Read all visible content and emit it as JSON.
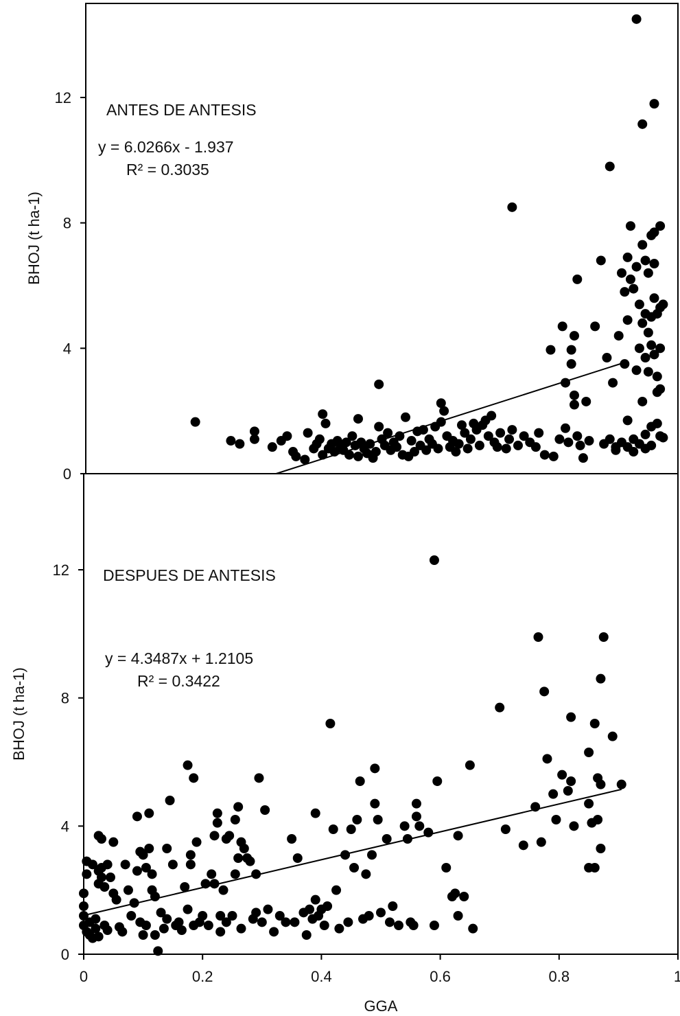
{
  "chart_data": [
    {
      "type": "scatter",
      "title": "ANTES DE ANTESIS",
      "equation": "y = 6.0266x - 1.937",
      "r2": "R² = 0.3035",
      "xlabel": "",
      "ylabel": "BHOJ (t ha-1)",
      "xlim": [
        0,
        1
      ],
      "ylim": [
        0,
        15
      ],
      "yticks": [
        "0",
        "4",
        "8",
        "12"
      ],
      "trendline": {
        "slope": 6.0266,
        "intercept": -1.937,
        "x_range": [
          0.3214,
          0.91
        ]
      },
      "points": [
        [
          0.185,
          1.65
        ],
        [
          0.245,
          1.05
        ],
        [
          0.26,
          0.95
        ],
        [
          0.285,
          1.35
        ],
        [
          0.285,
          1.1
        ],
        [
          0.315,
          0.85
        ],
        [
          0.33,
          1.05
        ],
        [
          0.34,
          1.2
        ],
        [
          0.35,
          0.7
        ],
        [
          0.355,
          0.55
        ],
        [
          0.37,
          0.45
        ],
        [
          0.375,
          1.3
        ],
        [
          0.385,
          0.8
        ],
        [
          0.39,
          0.95
        ],
        [
          0.395,
          1.1
        ],
        [
          0.4,
          1.9
        ],
        [
          0.4,
          0.6
        ],
        [
          0.405,
          1.6
        ],
        [
          0.41,
          0.8
        ],
        [
          0.415,
          0.95
        ],
        [
          0.42,
          0.7
        ],
        [
          0.425,
          1.05
        ],
        [
          0.43,
          0.85
        ],
        [
          0.435,
          0.75
        ],
        [
          0.44,
          1.0
        ],
        [
          0.445,
          0.6
        ],
        [
          0.45,
          1.2
        ],
        [
          0.455,
          0.9
        ],
        [
          0.46,
          1.75
        ],
        [
          0.46,
          0.55
        ],
        [
          0.465,
          1.0
        ],
        [
          0.47,
          0.8
        ],
        [
          0.475,
          0.65
        ],
        [
          0.48,
          0.95
        ],
        [
          0.485,
          0.5
        ],
        [
          0.49,
          0.7
        ],
        [
          0.495,
          2.85
        ],
        [
          0.495,
          1.5
        ],
        [
          0.5,
          1.1
        ],
        [
          0.505,
          0.9
        ],
        [
          0.51,
          1.3
        ],
        [
          0.515,
          0.75
        ],
        [
          0.52,
          1.0
        ],
        [
          0.525,
          0.85
        ],
        [
          0.53,
          1.2
        ],
        [
          0.535,
          0.6
        ],
        [
          0.54,
          1.8
        ],
        [
          0.545,
          0.55
        ],
        [
          0.55,
          1.05
        ],
        [
          0.555,
          0.7
        ],
        [
          0.56,
          1.35
        ],
        [
          0.565,
          0.9
        ],
        [
          0.57,
          1.4
        ],
        [
          0.575,
          0.75
        ],
        [
          0.58,
          1.1
        ],
        [
          0.585,
          0.95
        ],
        [
          0.59,
          1.5
        ],
        [
          0.595,
          0.8
        ],
        [
          0.6,
          2.25
        ],
        [
          0.6,
          1.65
        ],
        [
          0.605,
          2.0
        ],
        [
          0.61,
          1.2
        ],
        [
          0.615,
          0.85
        ],
        [
          0.62,
          1.05
        ],
        [
          0.625,
          0.7
        ],
        [
          0.63,
          0.95
        ],
        [
          0.635,
          1.55
        ],
        [
          0.64,
          1.3
        ],
        [
          0.645,
          0.8
        ],
        [
          0.65,
          1.1
        ],
        [
          0.655,
          1.6
        ],
        [
          0.66,
          1.4
        ],
        [
          0.665,
          0.9
        ],
        [
          0.67,
          1.55
        ],
        [
          0.675,
          1.7
        ],
        [
          0.68,
          1.2
        ],
        [
          0.685,
          1.85
        ],
        [
          0.69,
          1.0
        ],
        [
          0.695,
          0.85
        ],
        [
          0.7,
          1.3
        ],
        [
          0.71,
          0.8
        ],
        [
          0.715,
          1.1
        ],
        [
          0.72,
          8.5
        ],
        [
          0.72,
          1.4
        ],
        [
          0.73,
          0.9
        ],
        [
          0.74,
          1.2
        ],
        [
          0.75,
          1.0
        ],
        [
          0.76,
          0.85
        ],
        [
          0.765,
          1.3
        ],
        [
          0.775,
          0.6
        ],
        [
          0.785,
          3.95
        ],
        [
          0.79,
          0.55
        ],
        [
          0.8,
          1.1
        ],
        [
          0.805,
          4.7
        ],
        [
          0.81,
          2.9
        ],
        [
          0.81,
          1.45
        ],
        [
          0.815,
          1.0
        ],
        [
          0.82,
          3.95
        ],
        [
          0.82,
          3.5
        ],
        [
          0.825,
          2.5
        ],
        [
          0.825,
          2.2
        ],
        [
          0.825,
          4.4
        ],
        [
          0.83,
          6.2
        ],
        [
          0.83,
          1.2
        ],
        [
          0.835,
          0.9
        ],
        [
          0.84,
          0.5
        ],
        [
          0.845,
          2.3
        ],
        [
          0.85,
          1.05
        ],
        [
          0.86,
          4.7
        ],
        [
          0.87,
          6.8
        ],
        [
          0.875,
          0.95
        ],
        [
          0.88,
          3.7
        ],
        [
          0.885,
          9.8
        ],
        [
          0.885,
          1.1
        ],
        [
          0.89,
          2.9
        ],
        [
          0.895,
          0.85
        ],
        [
          0.9,
          4.4
        ],
        [
          0.905,
          6.4
        ],
        [
          0.91,
          5.8
        ],
        [
          0.91,
          3.5
        ],
        [
          0.915,
          6.9
        ],
        [
          0.915,
          4.9
        ],
        [
          0.915,
          1.7
        ],
        [
          0.92,
          7.9
        ],
        [
          0.92,
          6.2
        ],
        [
          0.925,
          5.9
        ],
        [
          0.925,
          1.1
        ],
        [
          0.93,
          14.5
        ],
        [
          0.93,
          6.6
        ],
        [
          0.93,
          3.3
        ],
        [
          0.935,
          5.4
        ],
        [
          0.935,
          4.0
        ],
        [
          0.94,
          11.15
        ],
        [
          0.94,
          7.3
        ],
        [
          0.94,
          4.8
        ],
        [
          0.94,
          2.3
        ],
        [
          0.945,
          6.8
        ],
        [
          0.945,
          5.1
        ],
        [
          0.945,
          3.7
        ],
        [
          0.945,
          1.25
        ],
        [
          0.95,
          6.4
        ],
        [
          0.95,
          4.5
        ],
        [
          0.95,
          3.25
        ],
        [
          0.955,
          7.6
        ],
        [
          0.955,
          5.0
        ],
        [
          0.955,
          4.1
        ],
        [
          0.96,
          11.8
        ],
        [
          0.96,
          7.7
        ],
        [
          0.96,
          6.7
        ],
        [
          0.96,
          5.6
        ],
        [
          0.96,
          3.8
        ],
        [
          0.965,
          5.1
        ],
        [
          0.965,
          3.1
        ],
        [
          0.965,
          2.6
        ],
        [
          0.97,
          7.9
        ],
        [
          0.97,
          5.3
        ],
        [
          0.97,
          4.0
        ],
        [
          0.97,
          2.7
        ],
        [
          0.975,
          5.4
        ],
        [
          0.975,
          1.15
        ],
        [
          0.965,
          1.6
        ],
        [
          0.955,
          1.5
        ],
        [
          0.945,
          0.8
        ],
        [
          0.935,
          0.95
        ],
        [
          0.925,
          0.7
        ],
        [
          0.915,
          0.85
        ],
        [
          0.905,
          1.0
        ],
        [
          0.895,
          0.75
        ],
        [
          0.955,
          0.9
        ],
        [
          0.97,
          1.2
        ]
      ]
    },
    {
      "type": "scatter",
      "title": "DESPUES DE ANTESIS",
      "equation": "y = 4.3487x + 1.2105",
      "r2": "R² = 0.3422",
      "xlabel": "GGA",
      "ylabel": "BHOJ (t ha-1)",
      "xlim": [
        0,
        1
      ],
      "ylim": [
        0,
        15
      ],
      "xticks": [
        "0",
        "0.2",
        "0.4",
        "0.6",
        "0.8",
        "1"
      ],
      "yticks": [
        "0",
        "4",
        "8",
        "12"
      ],
      "trendline": {
        "slope": 4.3487,
        "intercept": 1.2105,
        "x_range": [
          0.0,
          0.905
        ]
      },
      "points": [
        [
          0.0,
          1.9
        ],
        [
          0.0,
          1.5
        ],
        [
          0.0,
          1.2
        ],
        [
          0.0,
          0.9
        ],
        [
          0.005,
          2.9
        ],
        [
          0.005,
          2.5
        ],
        [
          0.005,
          0.7
        ],
        [
          0.01,
          1.0
        ],
        [
          0.01,
          0.6
        ],
        [
          0.015,
          2.8
        ],
        [
          0.015,
          0.5
        ],
        [
          0.02,
          1.1
        ],
        [
          0.02,
          0.8
        ],
        [
          0.025,
          3.7
        ],
        [
          0.025,
          2.6
        ],
        [
          0.025,
          2.2
        ],
        [
          0.025,
          0.55
        ],
        [
          0.03,
          2.7
        ],
        [
          0.03,
          3.6
        ],
        [
          0.03,
          2.4
        ],
        [
          0.035,
          2.1
        ],
        [
          0.035,
          0.9
        ],
        [
          0.04,
          2.8
        ],
        [
          0.04,
          0.75
        ],
        [
          0.045,
          2.4
        ],
        [
          0.05,
          3.5
        ],
        [
          0.05,
          1.9
        ],
        [
          0.055,
          1.7
        ],
        [
          0.06,
          0.85
        ],
        [
          0.065,
          0.7
        ],
        [
          0.07,
          2.8
        ],
        [
          0.075,
          2.0
        ],
        [
          0.08,
          1.2
        ],
        [
          0.085,
          1.6
        ],
        [
          0.09,
          4.3
        ],
        [
          0.09,
          2.6
        ],
        [
          0.095,
          3.2
        ],
        [
          0.095,
          1.0
        ],
        [
          0.1,
          3.1
        ],
        [
          0.1,
          0.6
        ],
        [
          0.105,
          2.7
        ],
        [
          0.105,
          0.9
        ],
        [
          0.11,
          4.4
        ],
        [
          0.11,
          3.3
        ],
        [
          0.115,
          2.5
        ],
        [
          0.115,
          2.0
        ],
        [
          0.12,
          1.8
        ],
        [
          0.12,
          0.6
        ],
        [
          0.125,
          0.1
        ],
        [
          0.13,
          1.3
        ],
        [
          0.135,
          0.8
        ],
        [
          0.14,
          1.1
        ],
        [
          0.14,
          3.3
        ],
        [
          0.145,
          4.8
        ],
        [
          0.15,
          2.8
        ],
        [
          0.155,
          0.9
        ],
        [
          0.16,
          1.0
        ],
        [
          0.165,
          0.75
        ],
        [
          0.17,
          2.1
        ],
        [
          0.175,
          5.9
        ],
        [
          0.175,
          1.4
        ],
        [
          0.18,
          2.8
        ],
        [
          0.18,
          3.1
        ],
        [
          0.185,
          5.5
        ],
        [
          0.185,
          0.9
        ],
        [
          0.19,
          3.5
        ],
        [
          0.195,
          1.0
        ],
        [
          0.2,
          1.2
        ],
        [
          0.205,
          2.2
        ],
        [
          0.21,
          0.9
        ],
        [
          0.215,
          2.5
        ],
        [
          0.22,
          3.7
        ],
        [
          0.22,
          2.2
        ],
        [
          0.225,
          4.4
        ],
        [
          0.225,
          4.1
        ],
        [
          0.23,
          1.2
        ],
        [
          0.23,
          0.7
        ],
        [
          0.235,
          2.0
        ],
        [
          0.24,
          3.6
        ],
        [
          0.24,
          1.0
        ],
        [
          0.245,
          3.7
        ],
        [
          0.25,
          1.2
        ],
        [
          0.255,
          4.2
        ],
        [
          0.255,
          2.5
        ],
        [
          0.26,
          4.6
        ],
        [
          0.26,
          3.0
        ],
        [
          0.265,
          3.5
        ],
        [
          0.265,
          0.8
        ],
        [
          0.27,
          3.3
        ],
        [
          0.275,
          3.0
        ],
        [
          0.28,
          2.9
        ],
        [
          0.285,
          1.1
        ],
        [
          0.29,
          1.3
        ],
        [
          0.29,
          2.5
        ],
        [
          0.295,
          5.5
        ],
        [
          0.3,
          1.0
        ],
        [
          0.305,
          4.5
        ],
        [
          0.31,
          1.4
        ],
        [
          0.32,
          0.7
        ],
        [
          0.33,
          1.2
        ],
        [
          0.34,
          1.0
        ],
        [
          0.35,
          3.6
        ],
        [
          0.355,
          1.0
        ],
        [
          0.36,
          3.0
        ],
        [
          0.37,
          1.3
        ],
        [
          0.375,
          0.6
        ],
        [
          0.38,
          1.4
        ],
        [
          0.385,
          1.1
        ],
        [
          0.39,
          4.4
        ],
        [
          0.39,
          1.7
        ],
        [
          0.395,
          1.2
        ],
        [
          0.4,
          1.4
        ],
        [
          0.405,
          0.9
        ],
        [
          0.41,
          1.5
        ],
        [
          0.415,
          7.2
        ],
        [
          0.42,
          3.9
        ],
        [
          0.425,
          2.0
        ],
        [
          0.43,
          0.8
        ],
        [
          0.44,
          3.1
        ],
        [
          0.445,
          1.0
        ],
        [
          0.45,
          3.9
        ],
        [
          0.455,
          2.7
        ],
        [
          0.46,
          4.2
        ],
        [
          0.465,
          5.4
        ],
        [
          0.47,
          1.1
        ],
        [
          0.475,
          2.5
        ],
        [
          0.48,
          1.2
        ],
        [
          0.485,
          3.1
        ],
        [
          0.49,
          5.8
        ],
        [
          0.49,
          4.7
        ],
        [
          0.495,
          4.2
        ],
        [
          0.5,
          1.3
        ],
        [
          0.51,
          3.6
        ],
        [
          0.515,
          1.0
        ],
        [
          0.52,
          1.5
        ],
        [
          0.53,
          0.9
        ],
        [
          0.54,
          4.0
        ],
        [
          0.545,
          3.6
        ],
        [
          0.55,
          1.0
        ],
        [
          0.555,
          0.9
        ],
        [
          0.56,
          4.3
        ],
        [
          0.56,
          4.7
        ],
        [
          0.565,
          4.0
        ],
        [
          0.58,
          3.8
        ],
        [
          0.59,
          0.9
        ],
        [
          0.59,
          12.3
        ],
        [
          0.595,
          5.4
        ],
        [
          0.61,
          2.7
        ],
        [
          0.62,
          1.8
        ],
        [
          0.625,
          1.9
        ],
        [
          0.63,
          3.7
        ],
        [
          0.63,
          1.2
        ],
        [
          0.64,
          1.8
        ],
        [
          0.65,
          5.9
        ],
        [
          0.655,
          0.8
        ],
        [
          0.7,
          7.7
        ],
        [
          0.71,
          3.9
        ],
        [
          0.74,
          3.4
        ],
        [
          0.76,
          4.6
        ],
        [
          0.765,
          9.9
        ],
        [
          0.77,
          3.5
        ],
        [
          0.775,
          8.2
        ],
        [
          0.78,
          6.1
        ],
        [
          0.79,
          5.0
        ],
        [
          0.795,
          4.2
        ],
        [
          0.805,
          5.6
        ],
        [
          0.815,
          5.1
        ],
        [
          0.82,
          7.4
        ],
        [
          0.82,
          5.4
        ],
        [
          0.825,
          4.0
        ],
        [
          0.85,
          6.3
        ],
        [
          0.85,
          4.7
        ],
        [
          0.855,
          4.1
        ],
        [
          0.86,
          7.2
        ],
        [
          0.86,
          2.7
        ],
        [
          0.865,
          5.5
        ],
        [
          0.87,
          8.6
        ],
        [
          0.87,
          5.3
        ],
        [
          0.87,
          3.3
        ],
        [
          0.875,
          9.9
        ],
        [
          0.89,
          6.8
        ],
        [
          0.905,
          5.3
        ],
        [
          0.85,
          2.7
        ],
        [
          0.865,
          4.2
        ]
      ]
    }
  ]
}
